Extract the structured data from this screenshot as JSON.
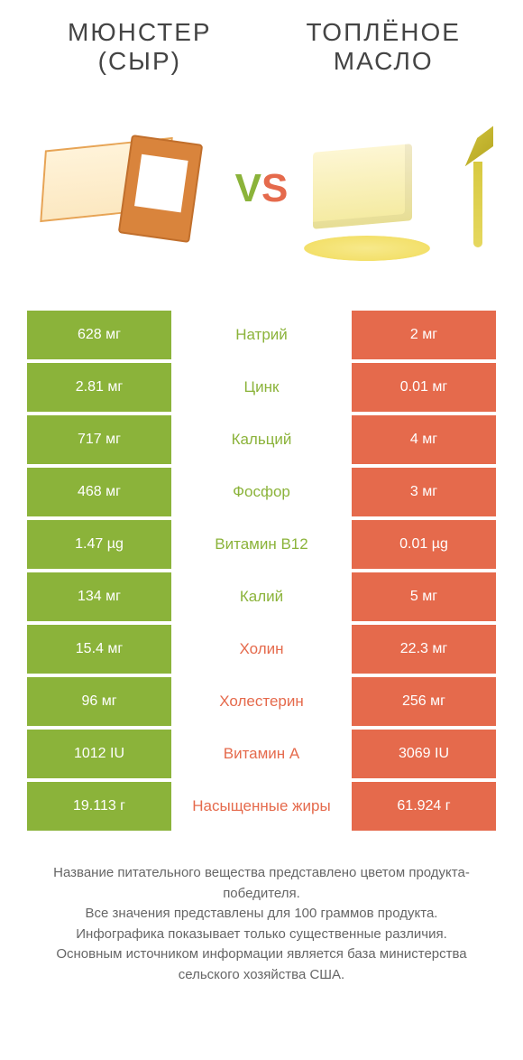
{
  "colors": {
    "green": "#8bb33a",
    "orange": "#e56a4c"
  },
  "header": {
    "left": {
      "line1": "МЮНСТЕР",
      "line2": "(СЫР)"
    },
    "right": {
      "line1": "ТОПЛЁНОЕ",
      "line2": "МАСЛО"
    }
  },
  "vs": {
    "v": "V",
    "s": "S"
  },
  "rows": [
    {
      "left": "628 мг",
      "label": "Натрий",
      "winner": "left",
      "right": "2 мг"
    },
    {
      "left": "2.81 мг",
      "label": "Цинк",
      "winner": "left",
      "right": "0.01 мг"
    },
    {
      "left": "717 мг",
      "label": "Кальций",
      "winner": "left",
      "right": "4 мг"
    },
    {
      "left": "468 мг",
      "label": "Фосфор",
      "winner": "left",
      "right": "3 мг"
    },
    {
      "left": "1.47 µg",
      "label": "Витамин B12",
      "winner": "left",
      "right": "0.01 µg"
    },
    {
      "left": "134 мг",
      "label": "Калий",
      "winner": "left",
      "right": "5 мг"
    },
    {
      "left": "15.4 мг",
      "label": "Холин",
      "winner": "right",
      "right": "22.3 мг"
    },
    {
      "left": "96 мг",
      "label": "Холестерин",
      "winner": "right",
      "right": "256 мг"
    },
    {
      "left": "1012 IU",
      "label": "Витамин A",
      "winner": "right",
      "right": "3069 IU"
    },
    {
      "left": "19.113 г",
      "label": "Насыщенные жиры",
      "winner": "right",
      "right": "61.924 г"
    }
  ],
  "footer": {
    "l1": "Название питательного вещества представлено цветом продукта-победителя.",
    "l2": "Все значения представлены для 100 граммов продукта.",
    "l3": "Инфографика показывает только существенные различия.",
    "l4": "Основным источником информации является база министерства сельского хозяйства США."
  }
}
